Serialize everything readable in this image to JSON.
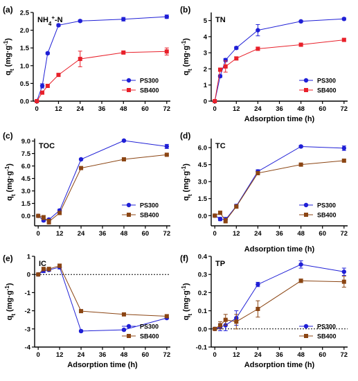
{
  "chart_data": [
    {
      "type": "line",
      "label": "(a)",
      "title": "NH4+-N",
      "title_main": "NH",
      "title_sub": "4",
      "title_sup": "+",
      "title_tail": "-N",
      "xlabel": "",
      "ylabel": "qt (mg·g-1)",
      "xlim": [
        -2,
        74
      ],
      "ylim": [
        0,
        2.5
      ],
      "xticks": [
        "0",
        "12",
        "24",
        "36",
        "48",
        "60",
        "72"
      ],
      "yticks": [
        "0.0",
        "0.5",
        "1.0",
        "1.5",
        "2.0",
        "2.5"
      ],
      "zero_line": false,
      "legend_position": "bottom-right",
      "series": [
        {
          "name": "PS300",
          "color": "#1f1fd6",
          "marker": "circle",
          "x": [
            0,
            3,
            6,
            12,
            24,
            48,
            72
          ],
          "y": [
            0,
            0.43,
            1.35,
            2.14,
            2.26,
            2.31,
            2.38
          ],
          "err": [
            0.02,
            0.06,
            0.03,
            0.03,
            0.03,
            0.05,
            0.05
          ]
        },
        {
          "name": "SB400",
          "color": "#e8202a",
          "marker": "square",
          "x": [
            0,
            3,
            6,
            12,
            24,
            48,
            72
          ],
          "y": [
            0,
            0.24,
            0.43,
            0.74,
            1.19,
            1.37,
            1.4
          ],
          "err": [
            0.02,
            0.04,
            0.04,
            0.03,
            0.22,
            0.03,
            0.1
          ]
        }
      ]
    },
    {
      "type": "line",
      "label": "(b)",
      "title": "TN",
      "xlabel": "Adsorption time (h)",
      "ylabel": "qt (mg·g-1)",
      "xlim": [
        -2,
        74
      ],
      "ylim": [
        0,
        5.5
      ],
      "xticks": [
        "0",
        "12",
        "24",
        "36",
        "48",
        "60",
        "72"
      ],
      "yticks": [
        "0",
        "1",
        "2",
        "3",
        "4",
        "5"
      ],
      "zero_line": false,
      "legend_position": "bottom-right",
      "series": [
        {
          "name": "PS300",
          "color": "#1f1fd6",
          "marker": "circle",
          "x": [
            0,
            3,
            6,
            12,
            24,
            48,
            72
          ],
          "y": [
            0,
            1.55,
            2.55,
            3.3,
            4.4,
            4.95,
            5.1
          ],
          "err": [
            0.03,
            0.08,
            0.1,
            0.08,
            0.35,
            0.06,
            0.07
          ]
        },
        {
          "name": "SB400",
          "color": "#e8202a",
          "marker": "square",
          "x": [
            0,
            3,
            6,
            12,
            24,
            48,
            72
          ],
          "y": [
            0,
            1.95,
            2.15,
            2.65,
            3.25,
            3.5,
            3.8
          ],
          "err": [
            0.03,
            0.1,
            0.35,
            0.1,
            0.1,
            0.06,
            0.08
          ]
        }
      ]
    },
    {
      "type": "line",
      "label": "(c)",
      "title": "TOC",
      "xlabel": "",
      "ylabel": "qt (mg·g-1)",
      "xlim": [
        -2,
        74
      ],
      "ylim": [
        -1.2,
        9.3
      ],
      "xticks": [
        "0",
        "12",
        "24",
        "36",
        "48",
        "60",
        "72"
      ],
      "yticks": [
        "0.0",
        "1.5",
        "3.0",
        "4.5",
        "6.0",
        "7.5",
        "9.0"
      ],
      "zero_line": false,
      "legend_position": "bottom-right",
      "series": [
        {
          "name": "PS300",
          "color": "#1f1fd6",
          "marker": "circle",
          "x": [
            0,
            3,
            6,
            12,
            24,
            48,
            72
          ],
          "y": [
            0,
            -0.55,
            -0.45,
            0.65,
            6.8,
            9.05,
            8.35
          ],
          "err": [
            0.05,
            0.15,
            0.15,
            0.15,
            0.1,
            0.1,
            0.25
          ]
        },
        {
          "name": "SB400",
          "color": "#8b4513",
          "marker": "square",
          "x": [
            0,
            3,
            6,
            12,
            24,
            48,
            72
          ],
          "y": [
            0,
            -0.2,
            -0.7,
            0.35,
            5.75,
            6.8,
            7.35
          ],
          "err": [
            0.05,
            0.25,
            0.3,
            0.2,
            0.1,
            0.1,
            0.1
          ]
        }
      ]
    },
    {
      "type": "line",
      "label": "(d)",
      "title": "TC",
      "xlabel": "Adsorption time (h)",
      "ylabel": "qt (mg·g-1)",
      "xlim": [
        -2,
        74
      ],
      "ylim": [
        -0.9,
        6.8
      ],
      "xticks": [
        "0",
        "12",
        "24",
        "36",
        "48",
        "60",
        "72"
      ],
      "yticks": [
        "0.0",
        "1.5",
        "3.0",
        "4.5",
        "6.0"
      ],
      "zero_line": false,
      "legend_position": "bottom-right",
      "series": [
        {
          "name": "PS300",
          "color": "#1f1fd6",
          "marker": "circle",
          "x": [
            0,
            3,
            6,
            12,
            24,
            48,
            72
          ],
          "y": [
            0,
            -0.3,
            -0.35,
            0.85,
            3.9,
            6.1,
            5.95
          ],
          "err": [
            0.05,
            0.15,
            0.2,
            0.15,
            0.15,
            0.1,
            0.2
          ]
        },
        {
          "name": "SB400",
          "color": "#8b4513",
          "marker": "square",
          "x": [
            0,
            3,
            6,
            12,
            24,
            48,
            72
          ],
          "y": [
            0,
            0.25,
            -0.45,
            0.8,
            3.75,
            4.5,
            4.85
          ],
          "err": [
            0.05,
            0.15,
            0.2,
            0.15,
            0.15,
            0.08,
            0.1
          ]
        }
      ]
    },
    {
      "type": "line",
      "label": "(e)",
      "title": "IC",
      "xlabel": "Adsorption time (h)",
      "ylabel": "qt (mg·g-1)",
      "xlim": [
        -2,
        74
      ],
      "ylim": [
        -4,
        1
      ],
      "xticks": [
        "0",
        "12",
        "24",
        "36",
        "48",
        "60",
        "72"
      ],
      "yticks": [
        "-4",
        "-3",
        "-2",
        "-1",
        "0",
        "1"
      ],
      "zero_line": true,
      "legend_position": "bottom-right",
      "series": [
        {
          "name": "PS300",
          "color": "#1f1fd6",
          "marker": "circle",
          "x": [
            0,
            3,
            6,
            12,
            24,
            48,
            72
          ],
          "y": [
            0,
            0.2,
            0.25,
            0.4,
            -3.12,
            -3.05,
            -2.4
          ],
          "err": [
            0.03,
            0.1,
            0.08,
            0.1,
            0.05,
            0.05,
            0.05
          ]
        },
        {
          "name": "SB400",
          "color": "#8b4513",
          "marker": "square",
          "x": [
            0,
            3,
            6,
            12,
            24,
            48,
            72
          ],
          "y": [
            0,
            0.3,
            0.3,
            0.48,
            -2.02,
            -2.2,
            -2.3
          ],
          "err": [
            0.03,
            0.1,
            0.1,
            0.1,
            0.06,
            0.06,
            0.08
          ]
        }
      ]
    },
    {
      "type": "line",
      "label": "(f)",
      "title": "TP",
      "xlabel": "Adsorption time (h)",
      "ylabel": "qt (mg·g-1)",
      "xlim": [
        -2,
        74
      ],
      "ylim": [
        -0.1,
        0.4
      ],
      "xticks": [
        "0",
        "12",
        "24",
        "36",
        "48",
        "60",
        "72"
      ],
      "yticks": [
        "-0.1",
        "0.0",
        "0.1",
        "0.2",
        "0.3",
        "0.4"
      ],
      "zero_line": true,
      "legend_position": "bottom-right",
      "series": [
        {
          "name": "PS300",
          "color": "#1f1fd6",
          "marker": "circle",
          "x": [
            0,
            3,
            6,
            12,
            24,
            48,
            72
          ],
          "y": [
            0,
            0.01,
            0.02,
            0.06,
            0.245,
            0.355,
            0.315
          ],
          "err": [
            0.005,
            0.02,
            0.03,
            0.04,
            0.012,
            0.02,
            0.02
          ]
        },
        {
          "name": "SB400",
          "color": "#8b4513",
          "marker": "square",
          "x": [
            0,
            3,
            6,
            12,
            24,
            48,
            72
          ],
          "y": [
            0,
            0.02,
            0.05,
            0.04,
            0.11,
            0.265,
            0.26
          ],
          "err": [
            0.005,
            0.02,
            0.03,
            0.04,
            0.045,
            0.01,
            0.03
          ]
        }
      ]
    }
  ]
}
